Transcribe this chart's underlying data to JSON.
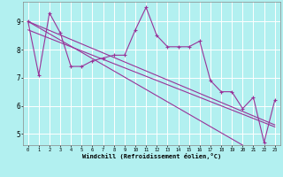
{
  "xlabel": "Windchill (Refroidissement éolien,°C)",
  "background_color": "#b2f0f0",
  "line_color": "#993399",
  "grid_color": "#ffffff",
  "xlim": [
    -0.5,
    23.5
  ],
  "ylim": [
    4.6,
    9.7
  ],
  "yticks": [
    5,
    6,
    7,
    8,
    9
  ],
  "xticks": [
    0,
    1,
    2,
    3,
    4,
    5,
    6,
    7,
    8,
    9,
    10,
    11,
    12,
    13,
    14,
    15,
    16,
    17,
    18,
    19,
    20,
    21,
    22,
    23
  ],
  "main_series": [
    9.0,
    7.1,
    9.3,
    8.6,
    7.4,
    7.4,
    7.6,
    7.7,
    7.8,
    7.8,
    8.7,
    9.5,
    8.5,
    8.1,
    8.1,
    8.1,
    8.3,
    6.9,
    6.5,
    6.5,
    5.9,
    6.3,
    4.7,
    6.2
  ],
  "trend1": [
    9.0,
    8.84,
    8.68,
    8.52,
    8.36,
    8.2,
    8.04,
    7.88,
    7.72,
    7.56,
    7.4,
    7.24,
    7.08,
    6.92,
    6.76,
    6.6,
    6.44,
    6.28,
    6.12,
    5.96,
    5.8,
    5.64,
    5.48,
    5.32
  ],
  "trend2": [
    9.0,
    8.78,
    8.56,
    8.34,
    8.12,
    7.9,
    7.68,
    7.46,
    7.24,
    7.02,
    6.8,
    6.58,
    6.36,
    6.14,
    5.92,
    5.7,
    5.48,
    5.26,
    5.04,
    4.82,
    4.6,
    4.38,
    4.16,
    3.94
  ],
  "trend3": [
    8.7,
    8.55,
    8.4,
    8.25,
    8.1,
    7.95,
    7.8,
    7.65,
    7.5,
    7.35,
    7.2,
    7.05,
    6.9,
    6.75,
    6.6,
    6.45,
    6.3,
    6.15,
    6.0,
    5.85,
    5.7,
    5.55,
    5.4,
    5.25
  ]
}
